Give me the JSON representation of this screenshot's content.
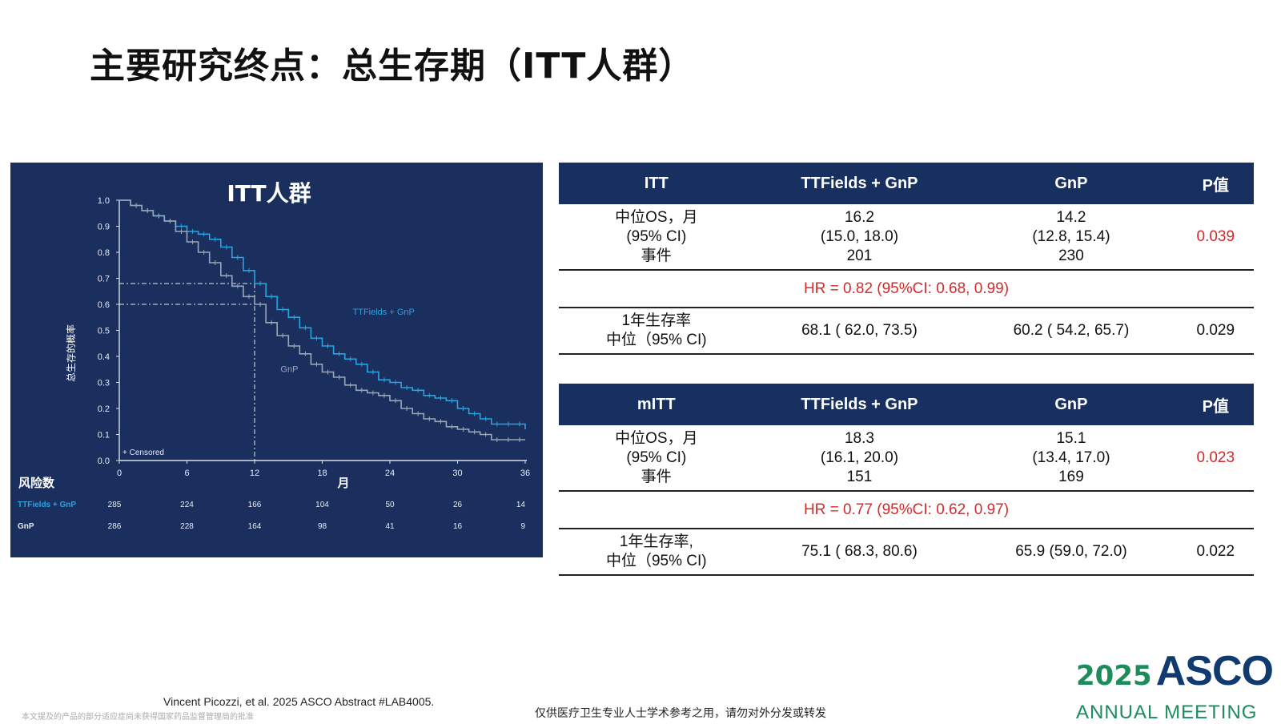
{
  "title": "主要研究终点：总生存期（ITT人群）",
  "chart_data": {
    "type": "line",
    "title": "ITT人群",
    "xlabel": "月",
    "ylabel": "总生存的概率",
    "xlim": [
      0,
      36
    ],
    "ylim": [
      0,
      1.0
    ],
    "x_ticks": [
      0,
      6,
      12,
      18,
      24,
      30,
      36
    ],
    "y_ticks": [
      0.0,
      0.1,
      0.2,
      0.3,
      0.4,
      0.5,
      0.6,
      0.7,
      0.8,
      0.9,
      1.0
    ],
    "censored_label": "+ Censored",
    "reference_lines": [
      {
        "series": "TTFields + GnP",
        "x": 12,
        "y": 0.68
      },
      {
        "series": "GnP",
        "x": 12,
        "y": 0.6
      }
    ],
    "series": [
      {
        "name": "TTFields + GnP",
        "color": "#2aa3e0",
        "x": [
          0,
          1,
          2,
          3,
          4,
          5,
          6,
          7,
          8,
          9,
          10,
          11,
          12,
          13,
          14,
          15,
          16,
          17,
          18,
          19,
          20,
          21,
          22,
          23,
          24,
          25,
          26,
          27,
          28,
          29,
          30,
          31,
          32,
          33,
          34,
          35,
          36
        ],
        "y": [
          1.0,
          0.98,
          0.96,
          0.94,
          0.92,
          0.9,
          0.88,
          0.87,
          0.85,
          0.82,
          0.78,
          0.73,
          0.68,
          0.63,
          0.58,
          0.55,
          0.51,
          0.47,
          0.44,
          0.41,
          0.39,
          0.37,
          0.34,
          0.31,
          0.3,
          0.28,
          0.27,
          0.25,
          0.24,
          0.23,
          0.2,
          0.18,
          0.16,
          0.14,
          0.14,
          0.14,
          0.12
        ]
      },
      {
        "name": "GnP",
        "color": "#9aa7b8",
        "x": [
          0,
          1,
          2,
          3,
          4,
          5,
          6,
          7,
          8,
          9,
          10,
          11,
          12,
          13,
          14,
          15,
          16,
          17,
          18,
          19,
          20,
          21,
          22,
          23,
          24,
          25,
          26,
          27,
          28,
          29,
          30,
          31,
          32,
          33,
          34,
          35,
          36
        ],
        "y": [
          1.0,
          0.98,
          0.96,
          0.94,
          0.92,
          0.88,
          0.84,
          0.8,
          0.76,
          0.71,
          0.67,
          0.63,
          0.6,
          0.53,
          0.48,
          0.44,
          0.41,
          0.37,
          0.34,
          0.32,
          0.29,
          0.27,
          0.26,
          0.25,
          0.23,
          0.2,
          0.18,
          0.16,
          0.15,
          0.13,
          0.12,
          0.11,
          0.1,
          0.08,
          0.08,
          0.08,
          0.08
        ]
      }
    ],
    "risk_table": {
      "title": "风险数",
      "rows": [
        {
          "name": "TTFields + GnP",
          "values": [
            285,
            224,
            166,
            104,
            50,
            26,
            14
          ]
        },
        {
          "name": "GnP",
          "values": [
            286,
            228,
            164,
            98,
            41,
            16,
            9
          ]
        }
      ]
    }
  },
  "table_itt": {
    "headers": [
      "ITT",
      "TTFields + GnP",
      "GnP",
      "P值"
    ],
    "row_label": [
      "中位OS，月",
      "(95% CI)",
      "事件"
    ],
    "ttf": [
      "16.2",
      "(15.0, 18.0)",
      "201"
    ],
    "gnp": [
      "14.2",
      "(12.8, 15.4)",
      "230"
    ],
    "p": "0.039",
    "hr": "HR = 0.82 (95%CI: 0.68, 0.99)",
    "surv_label": [
      "1年生存率",
      "中位（95% CI)"
    ],
    "surv_ttf": "68.1 ( 62.0, 73.5)",
    "surv_gnp": "60.2 ( 54.2, 65.7)",
    "surv_p": "0.029"
  },
  "table_mitt": {
    "headers": [
      "mITT",
      "TTFields + GnP",
      "GnP",
      "P值"
    ],
    "row_label": [
      "中位OS，月",
      "(95% CI)",
      "事件"
    ],
    "ttf": [
      "18.3",
      "(16.1, 20.0)",
      "151"
    ],
    "gnp": [
      "15.1",
      "(13.4, 17.0)",
      "169"
    ],
    "p": "0.023",
    "hr": "HR = 0.77 (95%CI: 0.62, 0.97)",
    "surv_label": [
      "1年生存率,",
      "中位（95% CI)"
    ],
    "surv_ttf": "75.1 ( 68.3, 80.6)",
    "surv_gnp": "65.9 (59.0, 72.0)",
    "surv_p": "0.022"
  },
  "footer": {
    "reference": "Vincent Picozzi, et al. 2025 ASCO Abstract #LAB4005.",
    "disclaimer_left": "本文提及的产品的部分适应症尚未获得国家药品监督管理局的批准",
    "disclaimer_center": "仅供医疗卫生专业人士学术参考之用，请勿对外分发或转发"
  },
  "logo": {
    "year": "2025",
    "name": "ASCO",
    "subtitle": "ANNUAL MEETING"
  },
  "colors": {
    "header_bg": "#17305f",
    "chart_bg": "#1b2f5e",
    "accent_red": "#d42a2a",
    "ttf_line": "#2aa3e0",
    "gnp_line": "#9aa7b8"
  }
}
